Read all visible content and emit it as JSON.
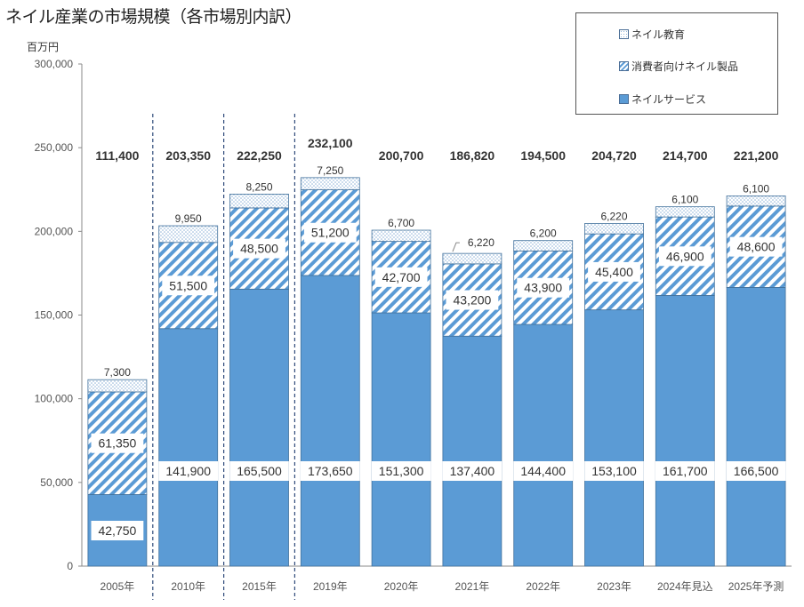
{
  "title": "ネイル産業の市場規模（各市場別内訳）",
  "unit": "百万円",
  "colors": {
    "service": "#5b9bd5",
    "stripe": "#5b9bd5",
    "education_dot": "#a9c4de",
    "text": "#333333"
  },
  "legend": [
    {
      "label": "ネイル教育",
      "pattern": "dots"
    },
    {
      "label": "消費者向けネイル製品",
      "pattern": "stripes"
    },
    {
      "label": "ネイルサービス",
      "pattern": "solid"
    }
  ],
  "chart_data": {
    "type": "bar",
    "stacked": true,
    "categories": [
      "2005年",
      "2010年",
      "2015年",
      "2019年",
      "2020年",
      "2021年",
      "2022年",
      "2023年",
      "2024年見込",
      "2025年予測"
    ],
    "series": [
      {
        "name": "ネイルサービス",
        "values": [
          42750,
          141900,
          165500,
          173650,
          151300,
          137400,
          144400,
          153100,
          161700,
          166500
        ]
      },
      {
        "name": "消費者向けネイル製品",
        "values": [
          61350,
          51500,
          48500,
          51200,
          42700,
          43200,
          43900,
          45400,
          46900,
          48600
        ]
      },
      {
        "name": "ネイル教育",
        "values": [
          7300,
          9950,
          8250,
          7250,
          6700,
          6220,
          6200,
          6220,
          6100,
          6100
        ]
      }
    ],
    "totals": [
      111400,
      203350,
      222250,
      232100,
      200700,
      186820,
      194500,
      204720,
      214700,
      221200
    ],
    "value_labels": {
      "service": [
        "42,750",
        "141,900",
        "165,500",
        "173,650",
        "151,300",
        "137,400",
        "144,400",
        "153,100",
        "161,700",
        "166,500"
      ],
      "products": [
        "61,350",
        "51,500",
        "48,500",
        "51,200",
        "42,700",
        "43,200",
        "43,900",
        "45,400",
        "46,900",
        "48,600"
      ],
      "education": [
        "7,300",
        "9,950",
        "8,250",
        "7,250",
        "6,700",
        "6,220",
        "6,200",
        "6,220",
        "6,100",
        "6,100"
      ],
      "totals": [
        "111,400",
        "203,350",
        "222,250",
        "232,100",
        "200,700",
        "186,820",
        "194,500",
        "204,720",
        "214,700",
        "221,200"
      ]
    },
    "y_ticks": [
      "0",
      "50,000",
      "100,000",
      "150,000",
      "200,000",
      "250,000",
      "300,000"
    ],
    "ylim": [
      0,
      300000
    ],
    "grid": false,
    "legend_position": "top-right",
    "separators_after": [
      "2005年",
      "2010年",
      "2015年"
    ]
  }
}
